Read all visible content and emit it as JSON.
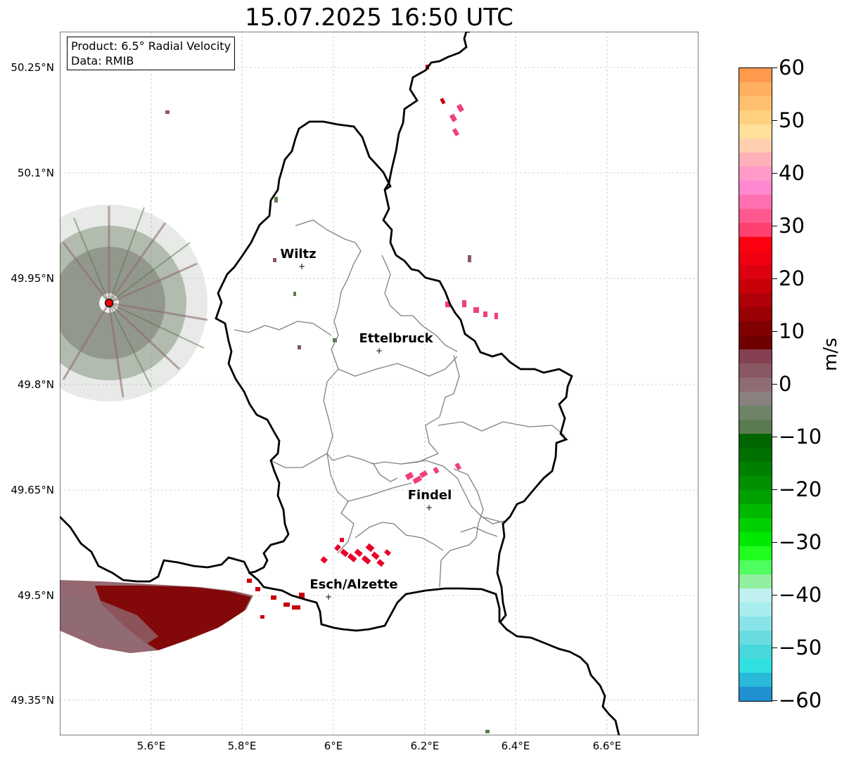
{
  "title": "15.07.2025 16:50 UTC",
  "infobox": {
    "line1": "Product: 6.5° Radial Velocity",
    "line2": "Data: RMIB"
  },
  "map": {
    "lat_ticks": [
      "50.25°N",
      "50.1°N",
      "49.95°N",
      "49.8°N",
      "49.65°N",
      "49.5°N",
      "49.35°N"
    ],
    "lon_ticks": [
      "5.6°E",
      "5.8°E",
      "6°E",
      "6.2°E",
      "6.4°E",
      "6.6°E"
    ],
    "cities": [
      {
        "name": "Wiltz"
      },
      {
        "name": "Ettelbruck"
      },
      {
        "name": "Findel"
      },
      {
        "name": "Esch/Alzette"
      }
    ],
    "radar_marker_color": "#e8000b",
    "border_color": "#000000",
    "canton_color": "#808080"
  },
  "colorbar": {
    "unit": "m/s",
    "min": -60,
    "max": 60,
    "tick_labels": [
      "60",
      "50",
      "40",
      "30",
      "20",
      "10",
      "0",
      "−10",
      "−20",
      "−30",
      "−40",
      "−50",
      "−60"
    ],
    "colors_top_to_bottom": [
      "#ff9a4d",
      "#ffb060",
      "#ffc070",
      "#ffd080",
      "#ffe09a",
      "#ffd0b0",
      "#ffb0b8",
      "#ff99c8",
      "#ff88d0",
      "#ff70b0",
      "#ff5a90",
      "#ff4070",
      "#ff0010",
      "#f00010",
      "#dd0010",
      "#c80008",
      "#b00008",
      "#980004",
      "#800000",
      "#700000",
      "#844050",
      "#8a5862",
      "#8f6c74",
      "#8a8080",
      "#6e8468",
      "#5a7a52",
      "#006400",
      "#007000",
      "#008000",
      "#009000",
      "#00a000",
      "#00b800",
      "#00d000",
      "#00e800",
      "#20ff20",
      "#50ff60",
      "#90f0a0",
      "#c0f0f0",
      "#a8ecee",
      "#88e4e8",
      "#68dce0",
      "#48d8dc",
      "#30e0e0",
      "#28b8d8",
      "#2090d0"
    ]
  }
}
